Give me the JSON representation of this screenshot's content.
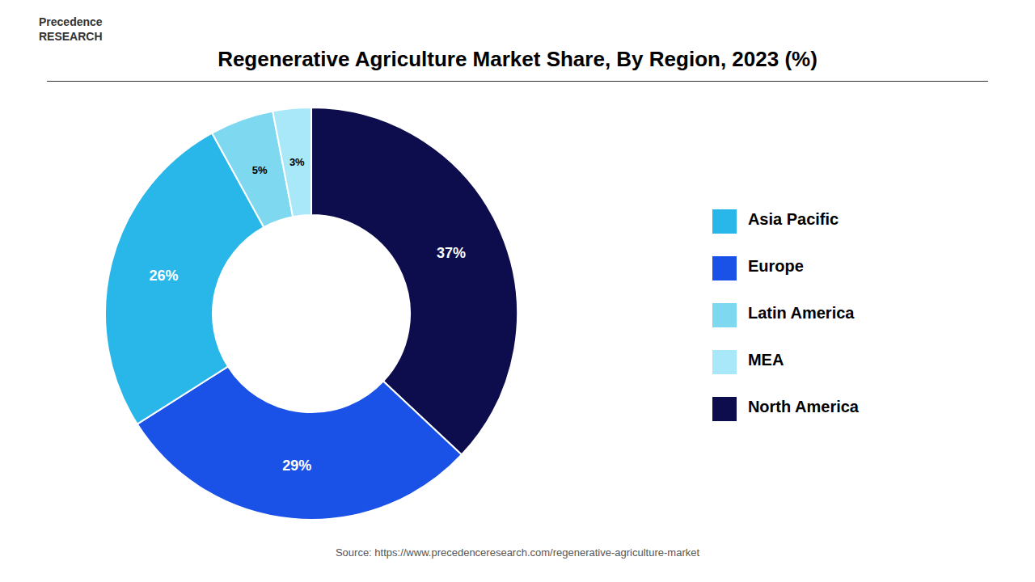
{
  "chart_data": {
    "type": "pie",
    "title": "Regenerative Agriculture Market Share, By Region, 2023 (%)",
    "categories": [
      "North America",
      "Europe",
      "Asia Pacific",
      "Latin America",
      "MEA"
    ],
    "values": [
      37,
      29,
      26,
      5,
      3
    ],
    "value_labels": [
      "37%",
      "29%",
      "26%",
      "5%",
      "3%"
    ],
    "colors": [
      "#0d0d4d",
      "#1a52e8",
      "#29b6e8",
      "#7dd8f0",
      "#a8e8f8"
    ],
    "data_labels": true,
    "legend": "right",
    "annotations": [
      "Precedence\nRESEARCH",
      "Source: https://www.precedenceresearch.com/regenerative-agriculture-market"
    ]
  }
}
